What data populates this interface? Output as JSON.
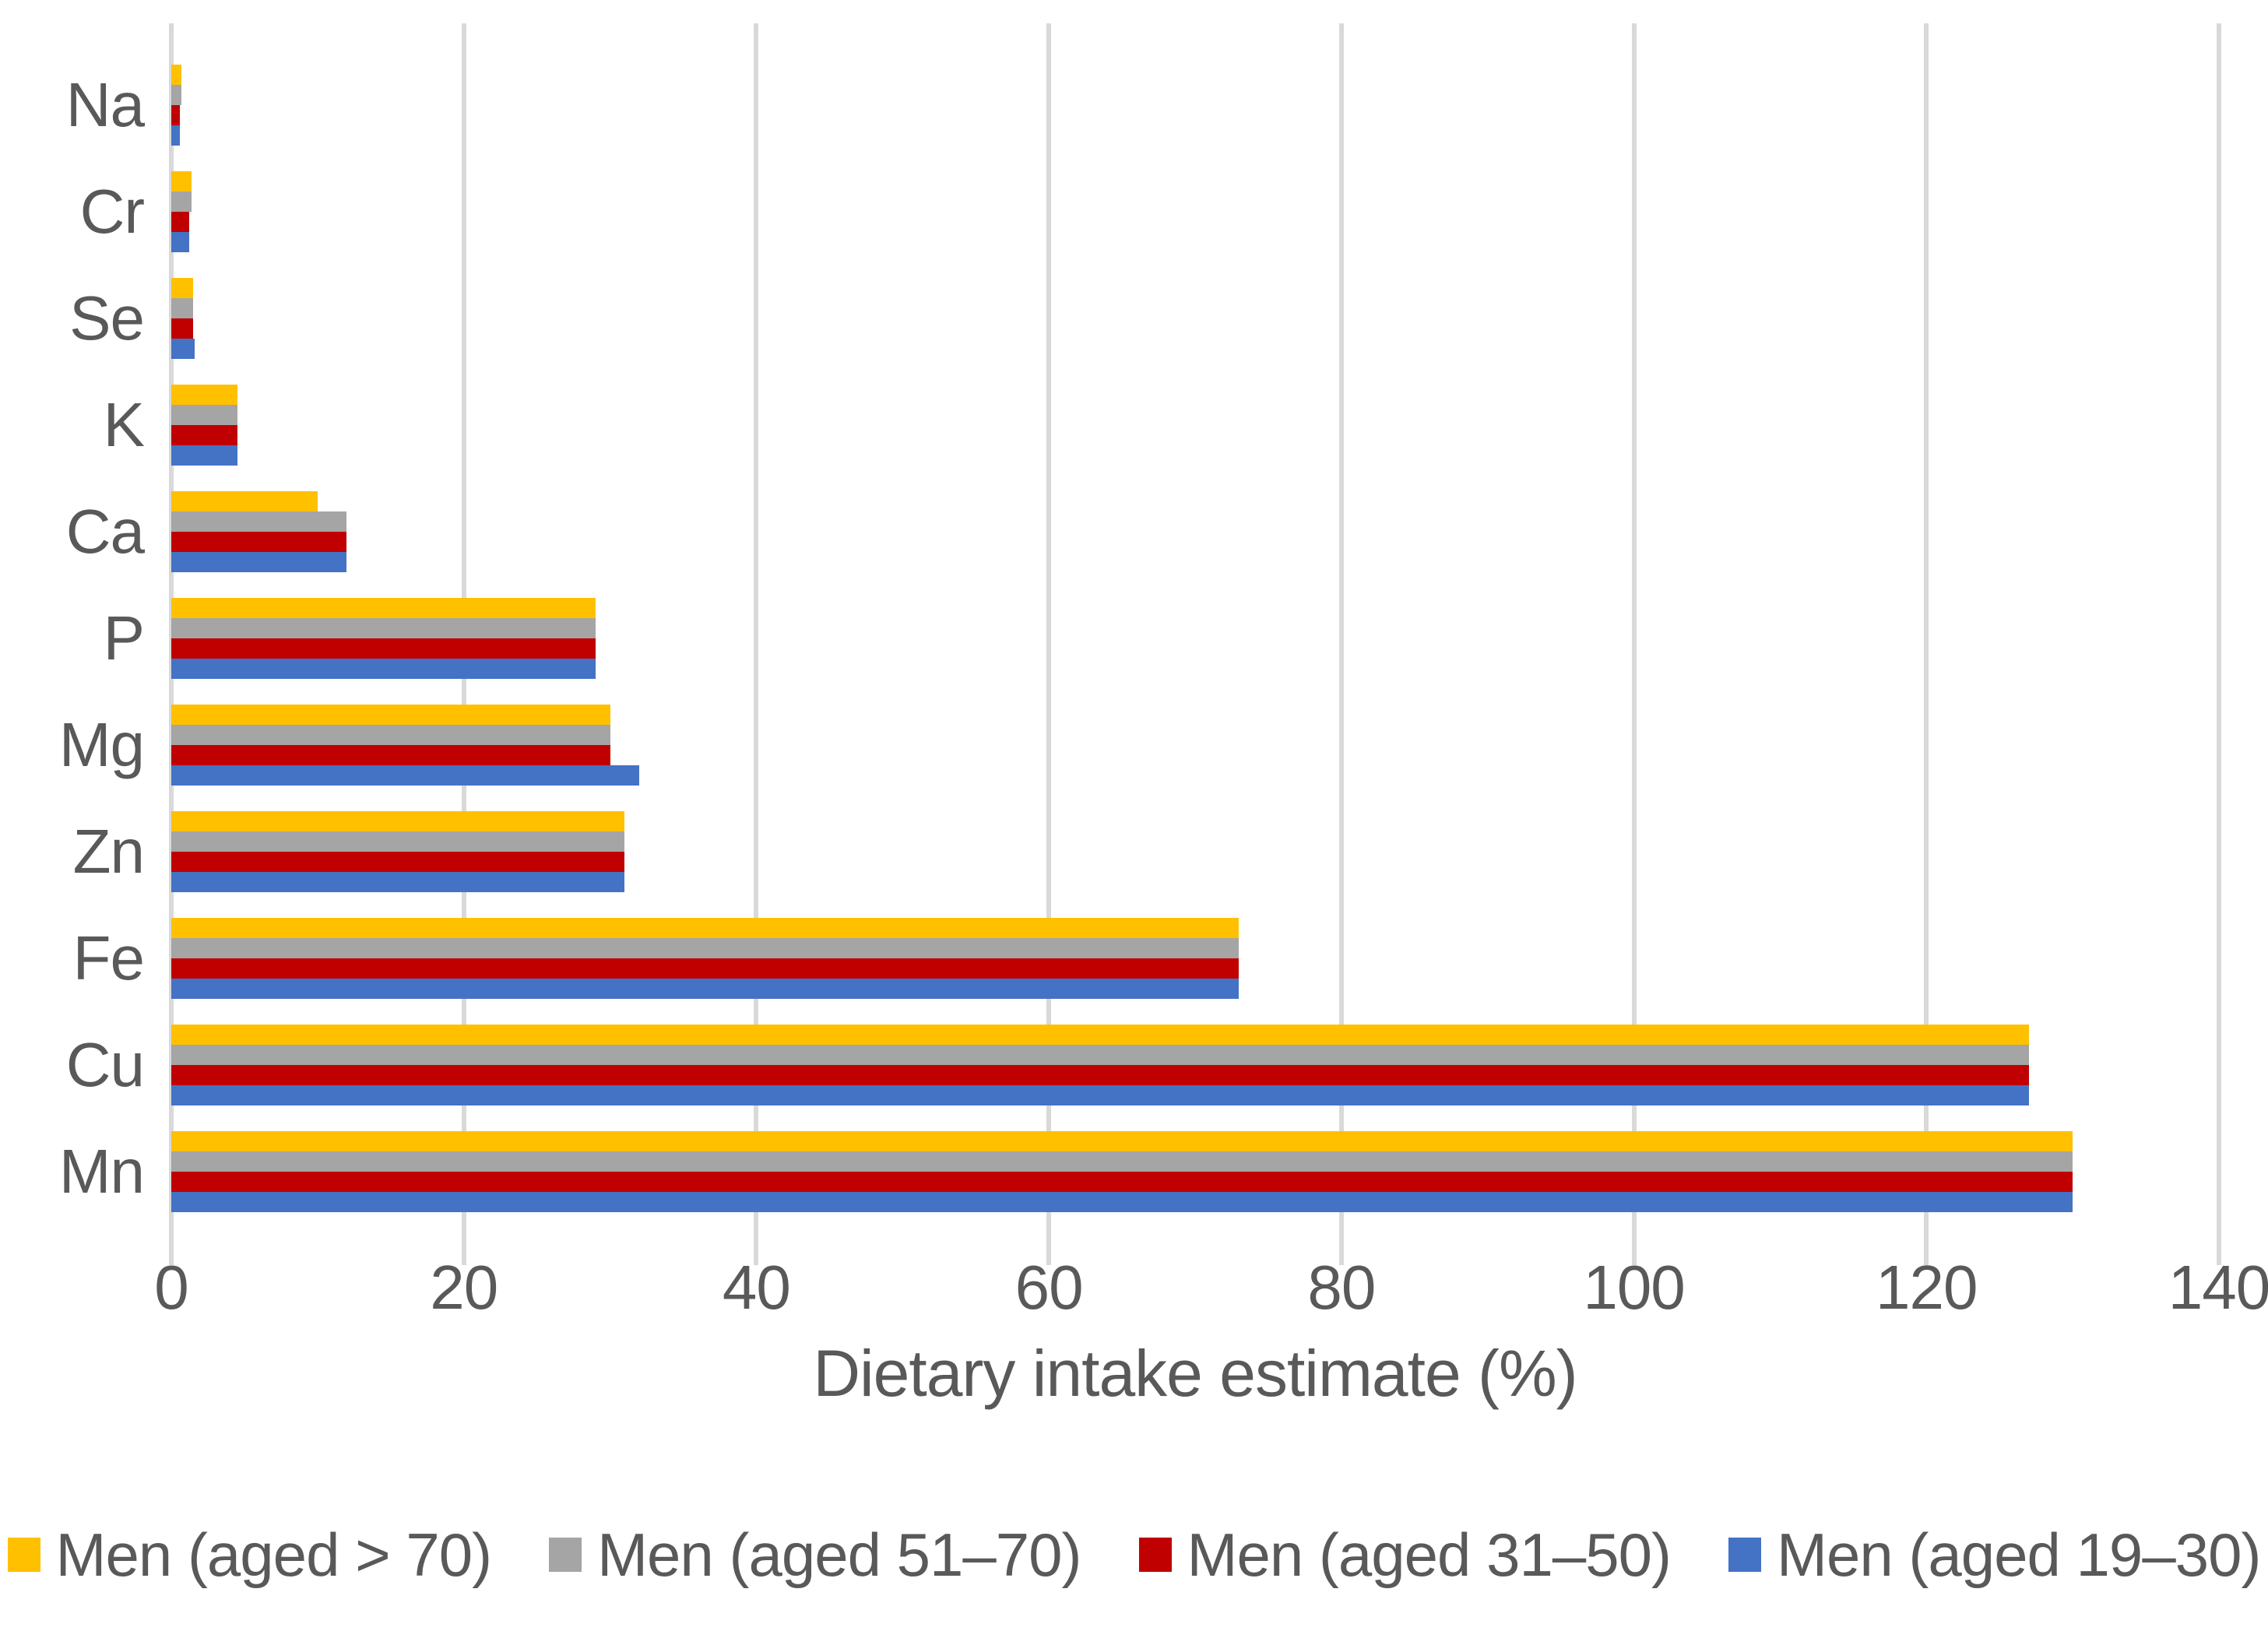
{
  "chart_data": {
    "type": "bar",
    "orientation": "horizontal",
    "title": "",
    "xlabel": "Dietary intake estimate (%)",
    "ylabel": "",
    "xlim": [
      0,
      140
    ],
    "xticks": [
      0,
      20,
      40,
      60,
      80,
      100,
      120,
      140
    ],
    "grid": true,
    "legend_position": "bottom",
    "categories": [
      "Na",
      "Cr",
      "Se",
      "K",
      "Ca",
      "P",
      "Mg",
      "Zn",
      "Fe",
      "Cu",
      "Mn"
    ],
    "series": [
      {
        "name": "Men (aged > 70)",
        "color": "#FFC000",
        "values": [
          0.7,
          1.4,
          1.5,
          4.5,
          10,
          29,
          30,
          31,
          73,
          127,
          130
        ]
      },
      {
        "name": "Men (aged 51–70)",
        "color": "#A5A5A5",
        "values": [
          0.7,
          1.4,
          1.5,
          4.5,
          12,
          29,
          30,
          31,
          73,
          127,
          130
        ]
      },
      {
        "name": "Men (aged 31–50)",
        "color": "#C00000",
        "values": [
          0.6,
          1.2,
          1.5,
          4.5,
          12,
          29,
          30,
          31,
          73,
          127,
          130
        ]
      },
      {
        "name": "Men (aged 19–30)",
        "color": "#4472C4",
        "values": [
          0.6,
          1.2,
          1.6,
          4.5,
          12,
          29,
          32,
          31,
          73,
          127,
          130
        ]
      }
    ]
  },
  "colors": {
    "gridline": "#d9d9d9",
    "text": "#595959",
    "background": "#ffffff"
  }
}
